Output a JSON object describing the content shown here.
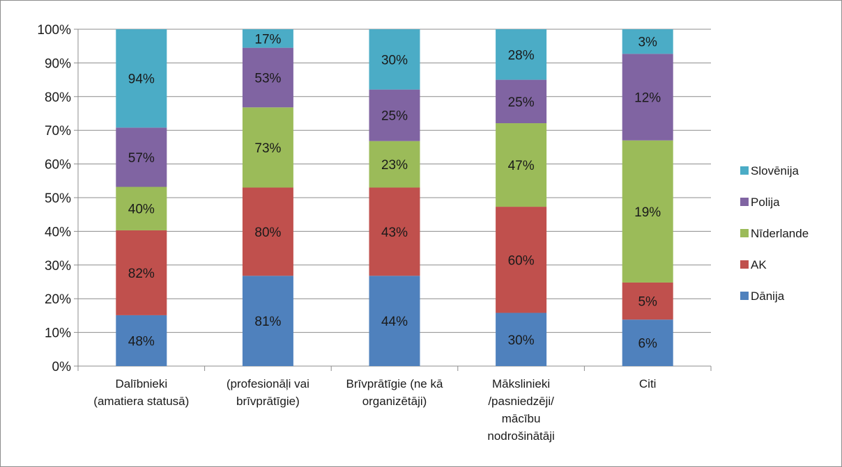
{
  "chart_data": {
    "type": "bar",
    "stacked": true,
    "percent_stacked": true,
    "ylim": [
      0,
      100
    ],
    "y_ticks": [
      "0%",
      "10%",
      "20%",
      "30%",
      "40%",
      "50%",
      "60%",
      "70%",
      "80%",
      "90%",
      "100%"
    ],
    "grid": true,
    "legend_position": "right",
    "categories": [
      [
        "Dalībnieki",
        "(amatiera statusā)"
      ],
      [
        "(profesionāļi vai",
        "brīvprātīgie)"
      ],
      [
        "Brīvprātīgie (ne kā",
        "organizētāji)"
      ],
      [
        "Mākslinieki",
        "/pasniedzēji/",
        "mācību",
        "nodrošinātāji"
      ],
      [
        "Citi"
      ]
    ],
    "series": [
      {
        "name": "Dānija",
        "color": "#4f81bd",
        "labels": [
          "48%",
          "81%",
          "44%",
          "30%",
          "6%"
        ],
        "shares": [
          15.1,
          26.8,
          26.8,
          15.8,
          13.8
        ]
      },
      {
        "name": "AK",
        "color": "#c0504d",
        "labels": [
          "82%",
          "80%",
          "43%",
          "60%",
          "5%"
        ],
        "shares": [
          25.2,
          26.2,
          26.2,
          31.5,
          11.0
        ]
      },
      {
        "name": "Nīderlande",
        "color": "#9bbb59",
        "labels": [
          "40%",
          "73%",
          "23%",
          "47%",
          "19%"
        ],
        "shares": [
          12.9,
          23.8,
          13.8,
          24.8,
          42.2
        ]
      },
      {
        "name": "Polija",
        "color": "#8064a2",
        "labels": [
          "57%",
          "53%",
          "25%",
          "25%",
          "12%"
        ],
        "shares": [
          17.6,
          17.7,
          15.3,
          12.9,
          25.7
        ]
      },
      {
        "name": "Slovēnija",
        "color": "#4bacc6",
        "labels": [
          "94%",
          "17%",
          "30%",
          "28%",
          "3%"
        ],
        "shares": [
          29.2,
          5.5,
          17.9,
          15.0,
          7.3
        ]
      }
    ]
  }
}
